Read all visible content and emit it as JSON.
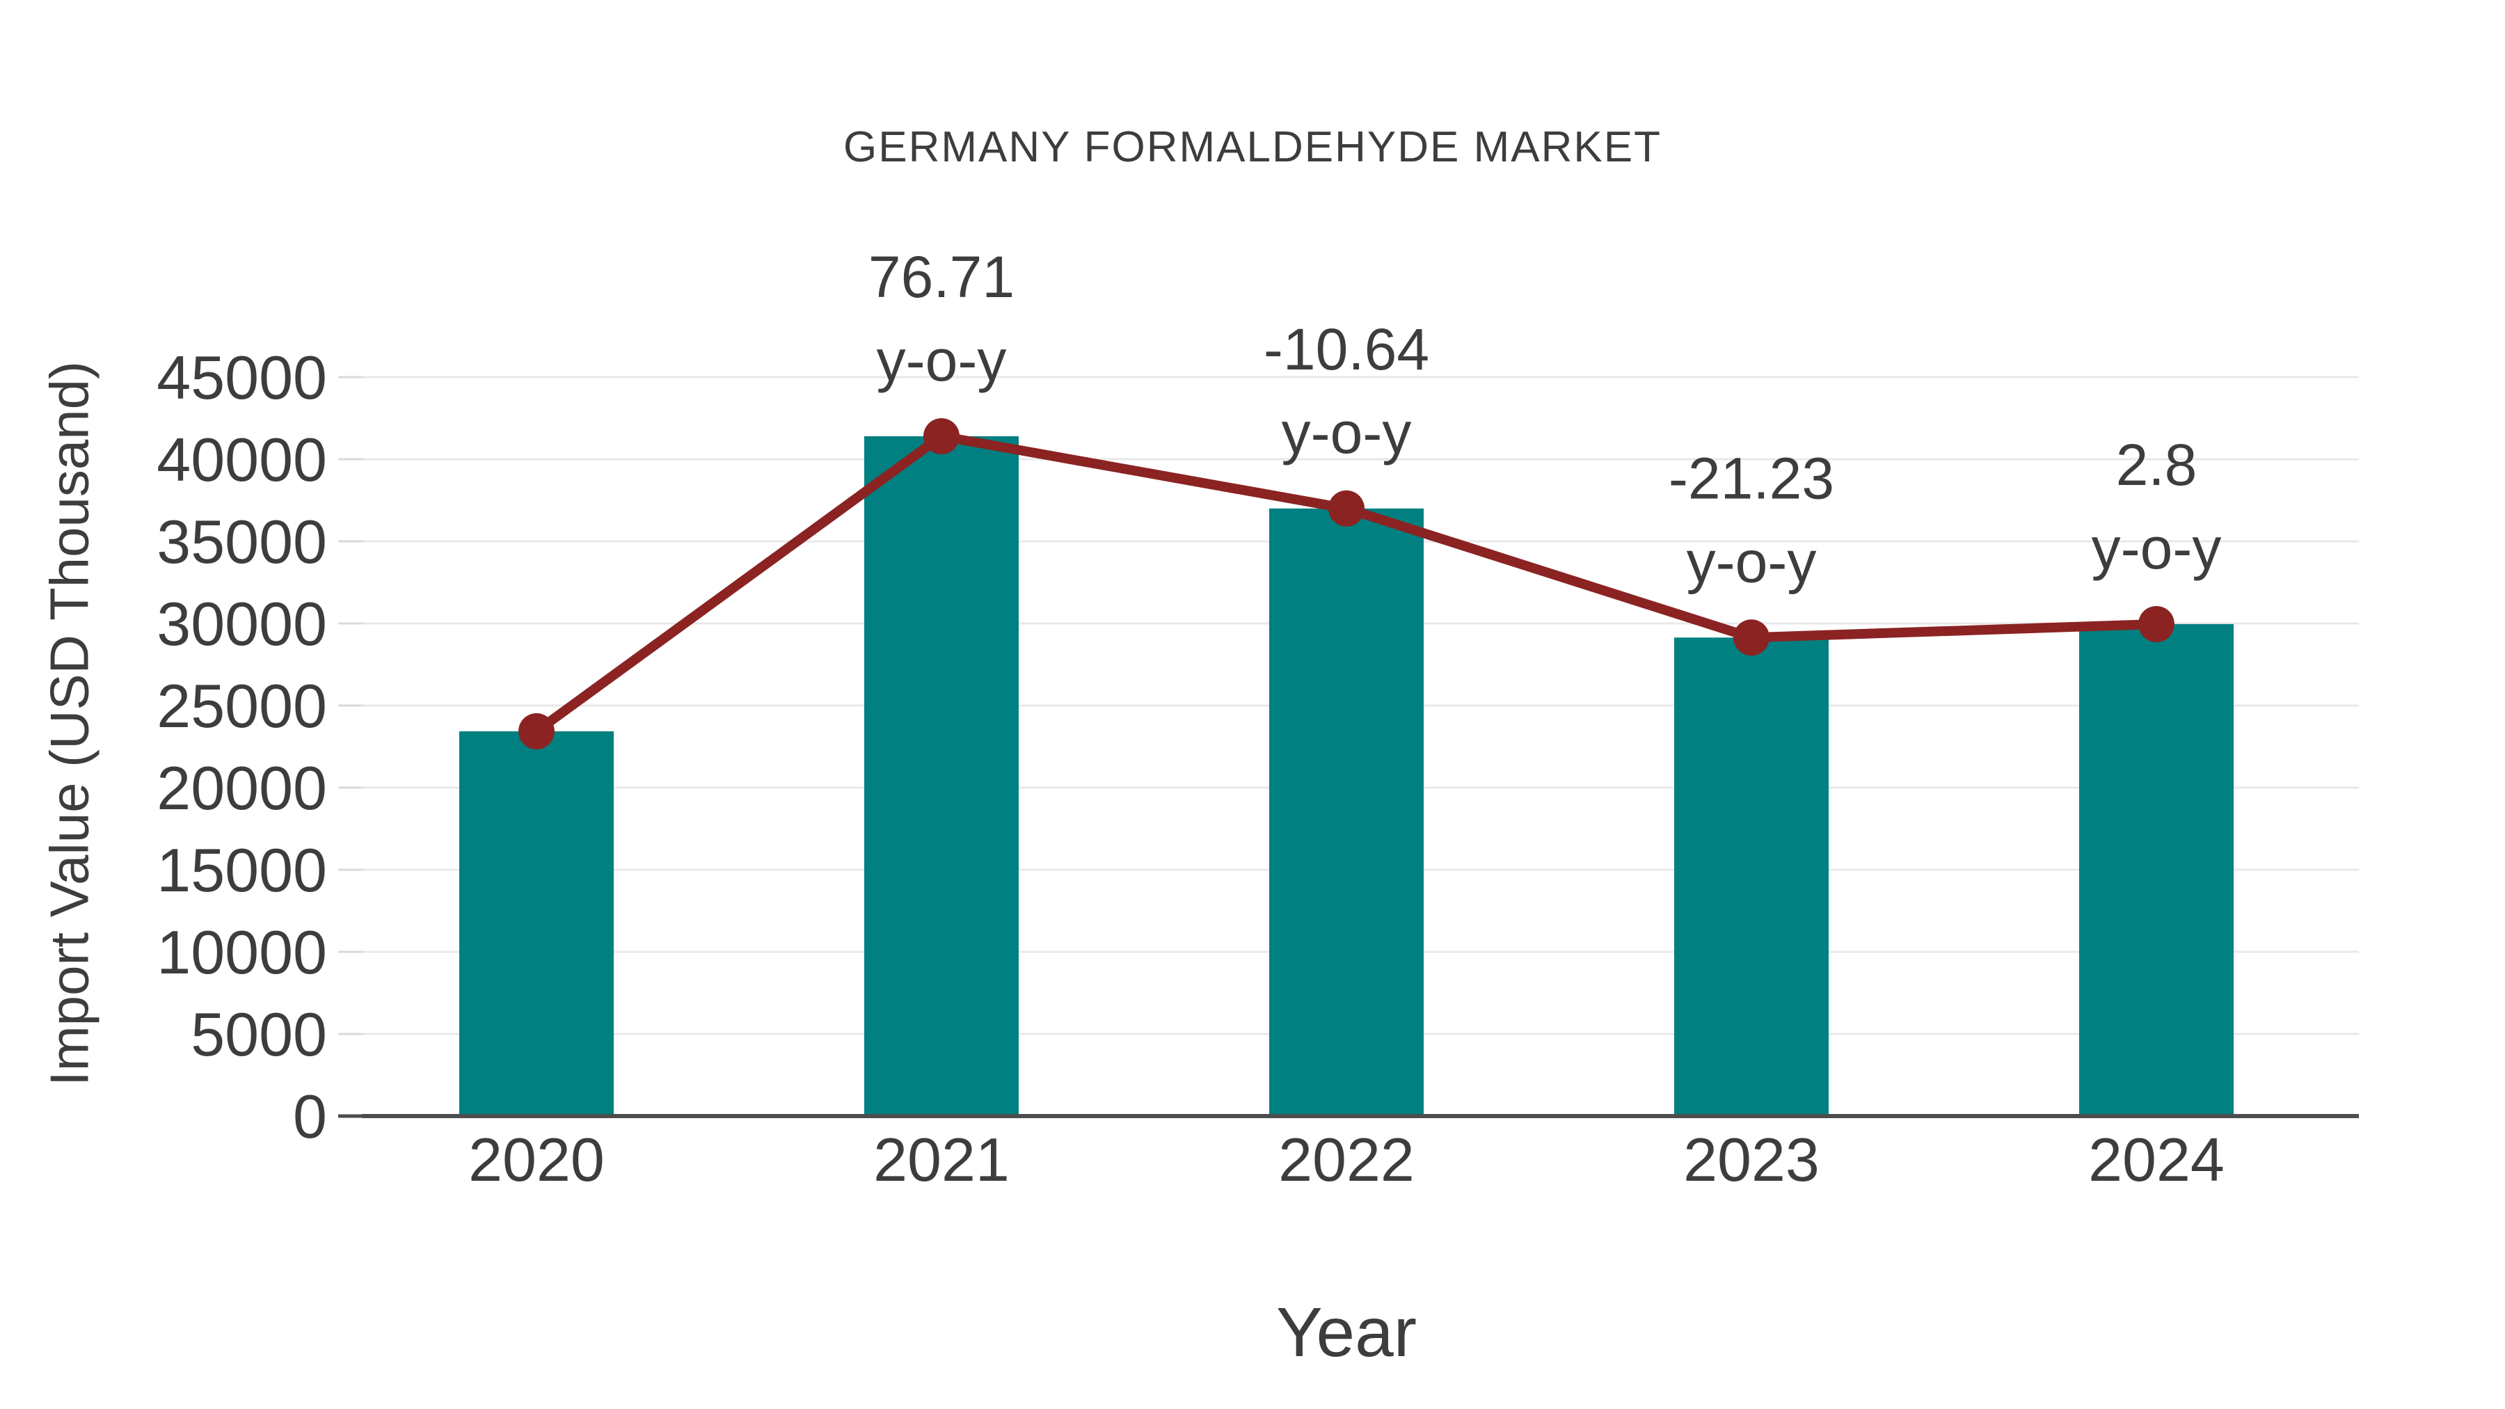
{
  "page": {
    "background": "#ffffff"
  },
  "chart_data": {
    "type": "bar",
    "title": "GERMANY FORMALDEHYDE MARKET",
    "xlabel": "Year",
    "ylabel": "Import Value (USD Thousand)",
    "categories": [
      "2020",
      "2021",
      "2022",
      "2023",
      "2024"
    ],
    "series": [
      {
        "name": "Import Value (USD Thousand)",
        "type": "bar",
        "color": "#008080",
        "values": [
          23430,
          41400,
          37000,
          29140,
          29960
        ]
      },
      {
        "name": "y-o-y trend line",
        "type": "line",
        "color": "#8B2323",
        "values": [
          23430,
          41400,
          37000,
          29140,
          29960
        ]
      }
    ],
    "annotations": [
      {
        "category": "2021",
        "line1": "76.71",
        "line2": "y-o-y"
      },
      {
        "category": "2022",
        "line1": "-10.64",
        "line2": "y-o-y"
      },
      {
        "category": "2023",
        "line1": "-21.23",
        "line2": "y-o-y"
      },
      {
        "category": "2024",
        "line1": "2.8",
        "line2": "y-o-y"
      }
    ],
    "ylim": [
      0,
      45000
    ],
    "ytick_step": 5000,
    "yticks": [
      0,
      5000,
      10000,
      15000,
      20000,
      25000,
      30000,
      35000,
      40000,
      45000
    ],
    "grid": true,
    "legend": "none",
    "colors": {
      "text": "#3d3d3d",
      "grid": "#e8e8e8",
      "axis": "#4d4d4d",
      "tick": "#d9d9d9"
    }
  }
}
